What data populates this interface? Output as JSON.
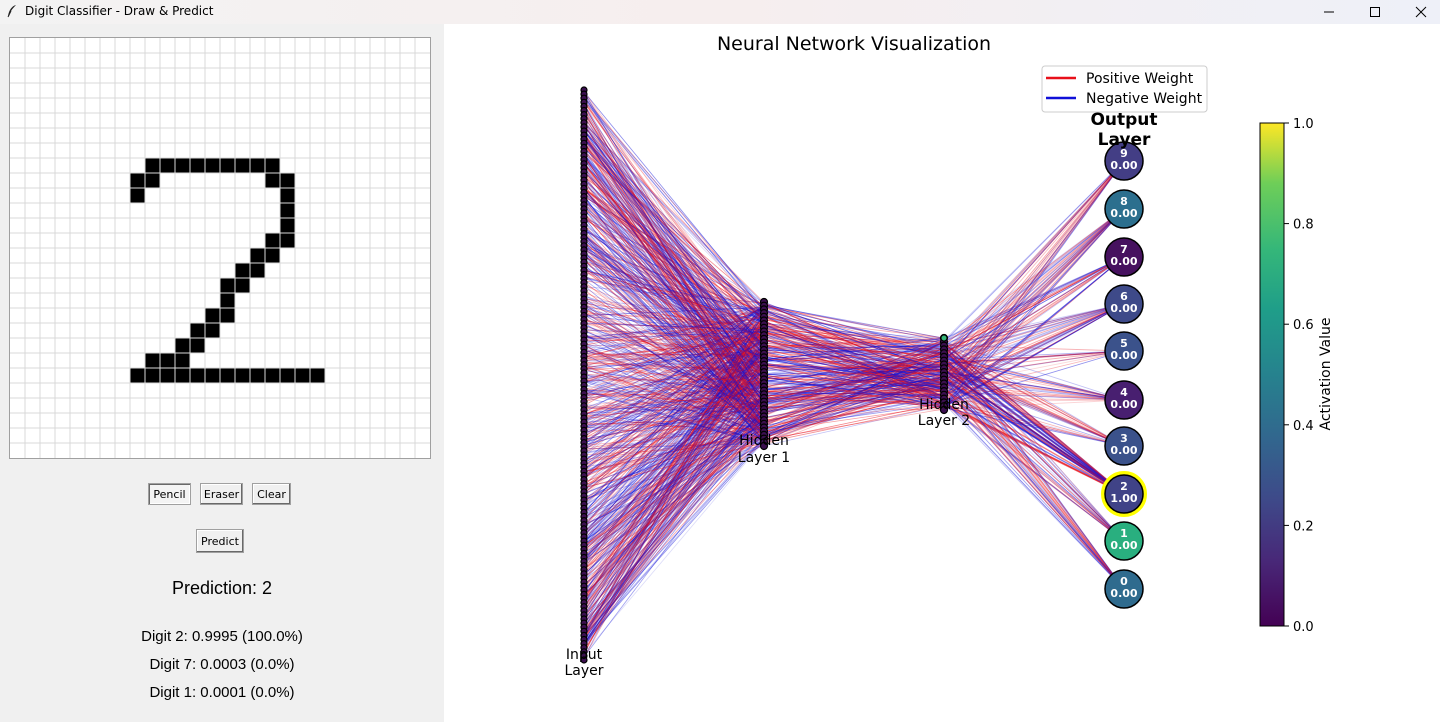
{
  "window": {
    "title": "Digit Classifier - Draw & Predict",
    "controls": [
      "minimize-icon",
      "maximize-icon",
      "close-icon"
    ]
  },
  "drawing": {
    "grid_size": 28,
    "filled_cells": [
      [
        8,
        9
      ],
      [
        8,
        10
      ],
      [
        8,
        11
      ],
      [
        8,
        12
      ],
      [
        8,
        13
      ],
      [
        8,
        14
      ],
      [
        8,
        15
      ],
      [
        8,
        16
      ],
      [
        8,
        17
      ],
      [
        9,
        8
      ],
      [
        9,
        9
      ],
      [
        9,
        17
      ],
      [
        9,
        18
      ],
      [
        10,
        8
      ],
      [
        10,
        18
      ],
      [
        11,
        18
      ],
      [
        12,
        18
      ],
      [
        13,
        17
      ],
      [
        13,
        18
      ],
      [
        14,
        16
      ],
      [
        14,
        17
      ],
      [
        15,
        15
      ],
      [
        15,
        16
      ],
      [
        16,
        14
      ],
      [
        16,
        15
      ],
      [
        17,
        14
      ],
      [
        18,
        13
      ],
      [
        18,
        14
      ],
      [
        19,
        12
      ],
      [
        19,
        13
      ],
      [
        20,
        11
      ],
      [
        20,
        12
      ],
      [
        21,
        9
      ],
      [
        21,
        10
      ],
      [
        21,
        11
      ],
      [
        22,
        8
      ],
      [
        22,
        9
      ],
      [
        22,
        10
      ],
      [
        22,
        11
      ],
      [
        22,
        12
      ],
      [
        22,
        13
      ],
      [
        22,
        14
      ],
      [
        22,
        15
      ],
      [
        22,
        16
      ],
      [
        22,
        17
      ],
      [
        22,
        18
      ],
      [
        22,
        19
      ],
      [
        22,
        20
      ]
    ]
  },
  "tools": {
    "pencil": "Pencil",
    "eraser": "Eraser",
    "clear": "Clear",
    "predict": "Predict",
    "active_tool": "Pencil"
  },
  "prediction": {
    "title": "Prediction: 2",
    "top": [
      "Digit 2: 0.9995 (100.0%)",
      "Digit 7: 0.0003 (0.0%)",
      "Digit 1: 0.0001 (0.0%)"
    ]
  },
  "network": {
    "title": "Neural Network Visualization",
    "legend": [
      {
        "label": "Positive Weight",
        "color": "#e8101a"
      },
      {
        "label": "Negative Weight",
        "color": "#1010d8"
      }
    ],
    "layer_labels": {
      "input": [
        "Input",
        "Layer"
      ],
      "hidden1": [
        "Hidden",
        "Layer 1"
      ],
      "hidden2": [
        "Hidden",
        "Layer 2"
      ],
      "output": [
        "Output",
        "Layer"
      ]
    },
    "output_nodes": [
      {
        "digit": "9",
        "value": "0.00",
        "color": "#433e85"
      },
      {
        "digit": "8",
        "value": "0.00",
        "color": "#2c6f8e"
      },
      {
        "digit": "7",
        "value": "0.00",
        "color": "#46115f"
      },
      {
        "digit": "6",
        "value": "0.00",
        "color": "#3e4a89"
      },
      {
        "digit": "5",
        "value": "0.00",
        "color": "#3b528b"
      },
      {
        "digit": "4",
        "value": "0.00",
        "color": "#481f70"
      },
      {
        "digit": "3",
        "value": "0.00",
        "color": "#3b528b"
      },
      {
        "digit": "2",
        "value": "1.00",
        "color": "#404387",
        "highlight": true
      },
      {
        "digit": "1",
        "value": "0.00",
        "color": "#29af7f"
      },
      {
        "digit": "0",
        "value": "0.00",
        "color": "#2f6b8e"
      }
    ],
    "colorbar": {
      "label": "Activation Value",
      "ticks": [
        "0.0",
        "0.2",
        "0.4",
        "0.6",
        "0.8",
        "1.0"
      ]
    }
  }
}
